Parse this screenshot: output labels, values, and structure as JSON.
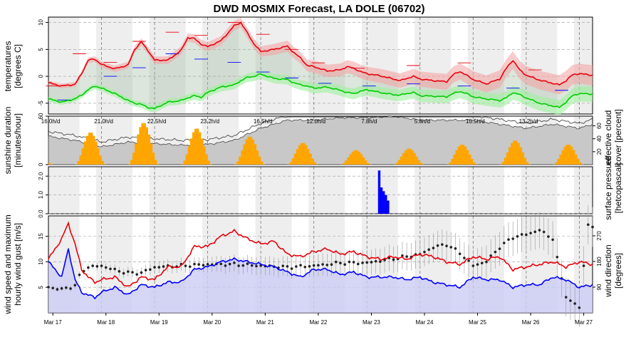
{
  "chart_data": {
    "title": "DWD MOSMIX Forecast, LA DOLE (06702)",
    "x_labels": [
      "Mar 17",
      "Mar 18",
      "Mar 19",
      "Mar 20",
      "Mar 21",
      "Mar 22",
      "Mar 23",
      "Mar 24",
      "Mar 25",
      "Mar 26",
      "Mar 27"
    ],
    "panels": [
      {
        "name": "temperature",
        "type": "line",
        "ylabel": [
          "temperatures",
          "[degrees C]"
        ],
        "ylim": [
          -7,
          11
        ],
        "yticks": [
          -5,
          0,
          5,
          10
        ],
        "hours": [
          0,
          6,
          12,
          15,
          18,
          21,
          24,
          30,
          36,
          39,
          42,
          45,
          48,
          54,
          60,
          63,
          66,
          69,
          72,
          78,
          84,
          87,
          90,
          93,
          96,
          102,
          108,
          111,
          114,
          117,
          120,
          126,
          132,
          135,
          138,
          141,
          144,
          150,
          156,
          159,
          162,
          165,
          168,
          174,
          180,
          183,
          186,
          189,
          192,
          198,
          204,
          207,
          210,
          213,
          216,
          222,
          228,
          231,
          234,
          237,
          240,
          246
        ],
        "series": [
          {
            "key": "max",
            "color": "#e8000b",
            "values": [
              -1.2,
              -1.8,
              -1.5,
              0.5,
              3.0,
              3.2,
              2.2,
              1.4,
              2.1,
              5.0,
              6.4,
              4.8,
              3.0,
              3.0,
              4.8,
              7.2,
              7.0,
              6.0,
              5.5,
              6.6,
              9.4,
              10.0,
              8.0,
              6.0,
              4.6,
              5.0,
              5.6,
              4.4,
              3.4,
              2.0,
              1.8,
              1.0,
              1.2,
              1.8,
              1.5,
              0.9,
              0.5,
              0.1,
              -0.5,
              -0.8,
              -0.4,
              0.0,
              -0.5,
              -0.8,
              -1.0,
              0.3,
              0.9,
              0.2,
              -0.6,
              -1.4,
              -0.5,
              1.5,
              3.0,
              1.2,
              0.2,
              -0.7,
              -1.3,
              -1.6,
              -0.8,
              0.3,
              0.5,
              0.2
            ]
          },
          {
            "key": "min",
            "color": "#00cc00",
            "values": [
              -4.2,
              -4.8,
              -4.2,
              -3.5,
              -2.5,
              -1.8,
              -2.2,
              -3.2,
              -4.5,
              -5.0,
              -5.2,
              -5.8,
              -6.0,
              -4.8,
              -4.5,
              -4.0,
              -3.6,
              -3.9,
              -3.0,
              -2.0,
              -1.6,
              -0.8,
              -0.2,
              0.0,
              0.4,
              -0.4,
              -0.6,
              -1.2,
              -1.6,
              -1.8,
              -2.2,
              -2.0,
              -2.6,
              -3.0,
              -3.2,
              -2.8,
              -2.5,
              -3.0,
              -3.4,
              -3.5,
              -3.2,
              -3.0,
              -3.6,
              -3.7,
              -3.8,
              -3.2,
              -2.8,
              -3.2,
              -3.8,
              -4.2,
              -4.5,
              -4.0,
              -3.0,
              -3.4,
              -4.0,
              -5.0,
              -5.5,
              -5.8,
              -4.8,
              -3.6,
              -3.2,
              -3.3
            ]
          }
        ],
        "day_maxima": [
          [
            1.8,
            -1.8
          ],
          [
            14,
            4.2
          ],
          [
            28,
            2.6
          ],
          [
            41,
            6.5
          ],
          [
            56,
            8.2
          ],
          [
            69,
            7.6
          ],
          [
            84,
            10.0
          ],
          [
            97,
            7.8
          ],
          [
            110,
            5.0
          ],
          [
            122,
            2.5
          ],
          [
            140,
            1.5
          ],
          [
            165,
            2.0
          ],
          [
            188,
            2.5
          ],
          [
            220,
            1.2
          ]
        ],
        "day_minima": [
          [
            7,
            -4.4
          ],
          [
            28,
            0.0
          ],
          [
            41,
            1.6
          ],
          [
            56,
            4.2
          ],
          [
            69,
            3.2
          ],
          [
            84,
            2.6
          ],
          [
            97,
            0.8
          ],
          [
            110,
            -0.3
          ],
          [
            125,
            -1.3
          ],
          [
            145,
            -1.8
          ],
          [
            165,
            -1.4
          ],
          [
            188,
            -1.8
          ],
          [
            210,
            -2.2
          ],
          [
            232,
            -2.6
          ]
        ]
      },
      {
        "name": "sunshine_cloud",
        "type": "bar",
        "ylabel": [
          "sunshine duration",
          "[minutes/hour]"
        ],
        "right_label": [
          "effective cloud",
          "cover [percent]"
        ],
        "ylim": [
          0,
          60
        ],
        "yticks": [
          0,
          60
        ],
        "right_ticks": [
          20,
          40,
          60
        ],
        "sun_color": "#ffa500",
        "cloud_color": "#c8c8c8",
        "day_totals": [
          "16.0h/d",
          "21.0h/d",
          "22.5h/d",
          "23.2h/d",
          "16.5h/d",
          "12.0h/d",
          "7.8h/d",
          "5.8h/d",
          "10.5h/d",
          "13.2h/d"
        ],
        "sun_peaks": [
          20,
          40,
          52,
          45,
          35,
          27,
          18,
          20,
          25,
          30,
          25
        ],
        "cloud_hours": [
          0,
          12,
          24,
          36,
          48,
          60,
          72,
          84,
          96,
          108,
          120,
          132,
          144,
          156,
          168,
          180,
          192,
          204,
          216,
          228,
          240,
          246
        ],
        "cloud_values": [
          35,
          30,
          22,
          28,
          26,
          24,
          25,
          30,
          45,
          55,
          55,
          58,
          58,
          60,
          55,
          55,
          55,
          50,
          45,
          50,
          45,
          50
        ]
      },
      {
        "name": "precipitation",
        "type": "bar",
        "right_label": [
          "surface pressure",
          "[hetcopascal]"
        ],
        "ylim": [
          0,
          2.5
        ],
        "yticks": [
          0.0,
          1.0,
          2.0
        ],
        "bar_color": "#0000ff",
        "bars": [
          [
            149,
            2.3
          ],
          [
            150,
            1.4
          ],
          [
            151,
            1.2
          ],
          [
            152,
            1.0
          ],
          [
            153,
            0.7
          ]
        ]
      },
      {
        "name": "wind",
        "type": "line",
        "ylabel": [
          "wind speed and maximum",
          "hourly wind gust [m/s]"
        ],
        "right_label": [
          "wind direction",
          "[degrees]"
        ],
        "ylim": [
          0,
          19
        ],
        "yticks": [
          5,
          10,
          15
        ],
        "right_ticks": [
          90,
          180,
          270
        ],
        "hours": [
          0,
          6,
          9,
          12,
          15,
          18,
          21,
          24,
          30,
          36,
          42,
          48,
          54,
          60,
          66,
          72,
          78,
          84,
          90,
          96,
          102,
          108,
          114,
          120,
          126,
          132,
          138,
          144,
          150,
          156,
          162,
          168,
          174,
          180,
          186,
          192,
          198,
          204,
          210,
          216,
          222,
          228,
          234,
          240,
          246
        ],
        "series": [
          {
            "key": "gust",
            "color": "#e8000b",
            "values": [
              10.5,
              14.5,
              17.5,
              13.5,
              8.5,
              7.0,
              6.0,
              6.5,
              7.0,
              5.0,
              7.0,
              6.5,
              9.0,
              9.0,
              13.0,
              13.0,
              15.0,
              16.0,
              14.5,
              13.5,
              14.0,
              11.5,
              11.0,
              12.0,
              12.5,
              11.5,
              12.0,
              11.0,
              10.5,
              11.0,
              10.5,
              11.5,
              11.0,
              10.0,
              9.5,
              11.0,
              10.5,
              11.0,
              8.5,
              9.0,
              9.5,
              10.0,
              9.0,
              10.0,
              9.5
            ]
          },
          {
            "key": "speed",
            "color": "#0000ff",
            "values": [
              10.0,
              7.0,
              12.5,
              6.5,
              4.0,
              3.5,
              3.0,
              4.0,
              5.0,
              3.5,
              5.5,
              5.0,
              6.0,
              6.0,
              8.5,
              9.0,
              10.0,
              10.5,
              10.0,
              9.5,
              9.0,
              8.0,
              7.0,
              8.5,
              8.5,
              7.5,
              8.0,
              7.0,
              7.0,
              7.0,
              6.5,
              7.0,
              6.0,
              5.5,
              5.0,
              7.0,
              6.5,
              6.5,
              5.0,
              5.5,
              5.5,
              7.0,
              6.5,
              5.0,
              5.5
            ]
          }
        ],
        "direction_hours": [
          0,
          6,
          12,
          15,
          18,
          24,
          30,
          36,
          42,
          48,
          60,
          72,
          84,
          96,
          108,
          120,
          132,
          144,
          156,
          168,
          174,
          180,
          186,
          192,
          198,
          204,
          210,
          216,
          222,
          228,
          230,
          232,
          234,
          236,
          240,
          244,
          246
        ],
        "direction_values": [
          90,
          82,
          95,
          145,
          160,
          165,
          150,
          140,
          140,
          160,
          165,
          170,
          170,
          165,
          160,
          165,
          175,
          175,
          190,
          205,
          230,
          240,
          210,
          165,
          180,
          230,
          265,
          275,
          290,
          260,
          190,
          120,
          60,
          40,
          20,
          310,
          300
        ]
      }
    ]
  }
}
